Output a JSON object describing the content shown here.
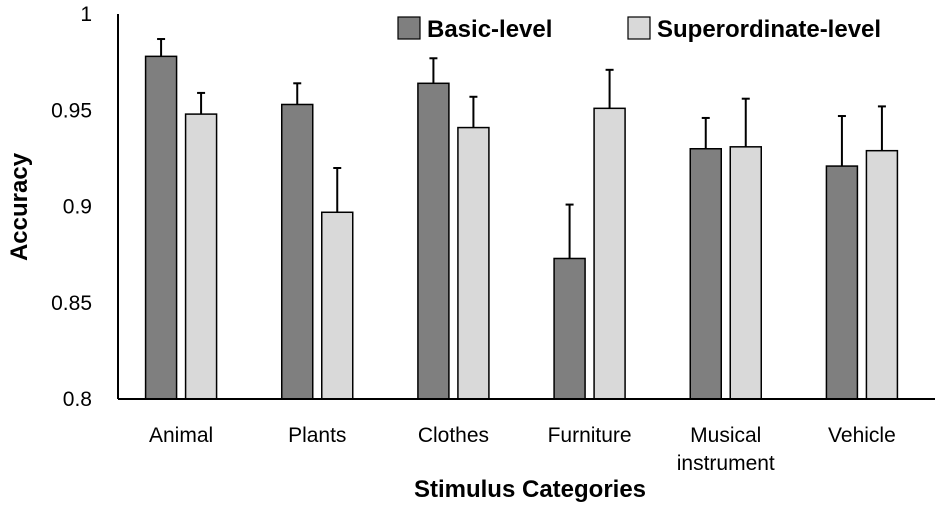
{
  "chart_data": {
    "type": "bar",
    "title": "",
    "xlabel": "Stimulus Categories",
    "ylabel": "Accuracy",
    "ylim": [
      0.8,
      1.0
    ],
    "yticks": [
      "0.8",
      "0.85",
      "0.9",
      "0.95",
      "1"
    ],
    "categories": [
      [
        "Animal"
      ],
      [
        "Plants"
      ],
      [
        "Clothes"
      ],
      [
        "Furniture"
      ],
      [
        "Musical",
        "instrument"
      ],
      [
        "Vehicle"
      ]
    ],
    "series": [
      {
        "name": "Basic-level",
        "color": "#7f7f7f",
        "values": [
          0.978,
          0.953,
          0.964,
          0.873,
          0.93,
          0.921
        ],
        "error": [
          0.009,
          0.011,
          0.013,
          0.028,
          0.016,
          0.026
        ]
      },
      {
        "name": "Superordinate-level",
        "color": "#d9d9d9",
        "values": [
          0.948,
          0.897,
          0.941,
          0.951,
          0.931,
          0.929
        ],
        "error": [
          0.011,
          0.023,
          0.016,
          0.02,
          0.025,
          0.023
        ]
      }
    ],
    "grid": false,
    "legend_position": "top-right"
  }
}
